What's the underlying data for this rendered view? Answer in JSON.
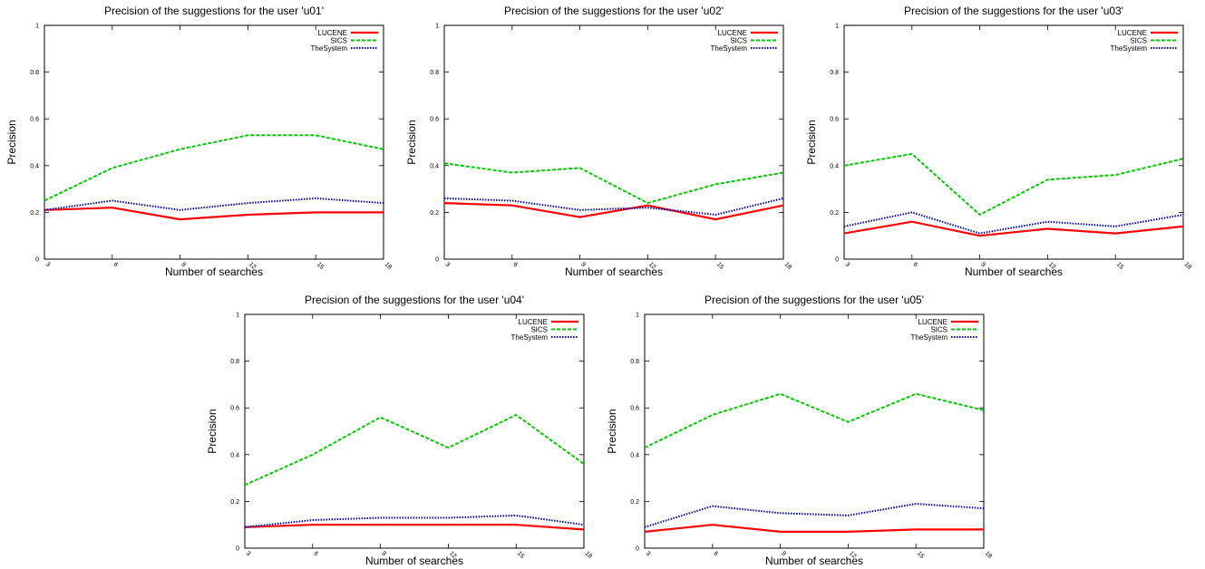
{
  "chart_data": [
    {
      "type": "line",
      "title": "Precision of the suggestions for the user 'u01'",
      "xlabel": "Number of searches",
      "ylabel": "Precision",
      "x": [
        3,
        6,
        9,
        12,
        15,
        18
      ],
      "x_tick_labels": [
        "3",
        "6",
        "9",
        "12",
        "15",
        "18"
      ],
      "y_tick_labels": [
        "0",
        "0.2",
        "0.4",
        "0.6",
        "0.8",
        "1"
      ],
      "xlim": [
        3,
        18
      ],
      "ylim": [
        0,
        1
      ],
      "legend_position": "top-right",
      "grid": false,
      "series": [
        {
          "name": "LUCENE",
          "color": "#ff0000",
          "dash": "solid",
          "values": [
            0.21,
            0.22,
            0.17,
            0.19,
            0.2,
            0.2
          ]
        },
        {
          "name": "SICS",
          "color": "#00cc00",
          "dash": "dashed",
          "values": [
            0.25,
            0.39,
            0.47,
            0.53,
            0.53,
            0.47
          ]
        },
        {
          "name": "TheSystem",
          "color": "#0000cc",
          "dash": "dotted",
          "values": [
            0.21,
            0.25,
            0.21,
            0.24,
            0.26,
            0.24
          ]
        }
      ]
    },
    {
      "type": "line",
      "title": "Precision of the suggestions for the user 'u02'",
      "xlabel": "Number of searches",
      "ylabel": "Precision",
      "x": [
        3,
        6,
        9,
        12,
        15,
        18
      ],
      "x_tick_labels": [
        "3",
        "6",
        "9",
        "12",
        "15",
        "18"
      ],
      "y_tick_labels": [
        "0",
        "0.2",
        "0.4",
        "0.6",
        "0.8",
        "1"
      ],
      "xlim": [
        3,
        18
      ],
      "ylim": [
        0,
        1
      ],
      "legend_position": "top-right",
      "grid": false,
      "series": [
        {
          "name": "LUCENE",
          "color": "#ff0000",
          "dash": "solid",
          "values": [
            0.24,
            0.23,
            0.18,
            0.23,
            0.17,
            0.23
          ]
        },
        {
          "name": "SICS",
          "color": "#00cc00",
          "dash": "dashed",
          "values": [
            0.41,
            0.37,
            0.39,
            0.24,
            0.32,
            0.37
          ]
        },
        {
          "name": "TheSystem",
          "color": "#0000cc",
          "dash": "dotted",
          "values": [
            0.26,
            0.25,
            0.21,
            0.22,
            0.19,
            0.26
          ]
        }
      ]
    },
    {
      "type": "line",
      "title": "Precision of the suggestions for the user 'u03'",
      "xlabel": "Number of searches",
      "ylabel": "Precision",
      "x": [
        3,
        6,
        9,
        12,
        15,
        18
      ],
      "x_tick_labels": [
        "3",
        "6",
        "9",
        "12",
        "15",
        "18"
      ],
      "y_tick_labels": [
        "0",
        "0.2",
        "0.4",
        "0.6",
        "0.8",
        "1"
      ],
      "xlim": [
        3,
        18
      ],
      "ylim": [
        0,
        1
      ],
      "legend_position": "top-right",
      "grid": false,
      "series": [
        {
          "name": "LUCENE",
          "color": "#ff0000",
          "dash": "solid",
          "values": [
            0.11,
            0.16,
            0.1,
            0.13,
            0.11,
            0.14
          ]
        },
        {
          "name": "SICS",
          "color": "#00cc00",
          "dash": "dashed",
          "values": [
            0.4,
            0.45,
            0.19,
            0.34,
            0.36,
            0.43
          ]
        },
        {
          "name": "TheSystem",
          "color": "#0000cc",
          "dash": "dotted",
          "values": [
            0.14,
            0.2,
            0.11,
            0.16,
            0.14,
            0.19
          ]
        }
      ]
    },
    {
      "type": "line",
      "title": "Precision of the suggestions for the user 'u04'",
      "xlabel": "Number of searches",
      "ylabel": "Precision",
      "x": [
        3,
        6,
        9,
        12,
        15,
        18
      ],
      "x_tick_labels": [
        "3",
        "6",
        "9",
        "12",
        "15",
        "18"
      ],
      "y_tick_labels": [
        "0",
        "0.2",
        "0.4",
        "0.6",
        "0.8",
        "1"
      ],
      "xlim": [
        3,
        18
      ],
      "ylim": [
        0,
        1
      ],
      "legend_position": "top-right",
      "grid": false,
      "series": [
        {
          "name": "LUCENE",
          "color": "#ff0000",
          "dash": "solid",
          "values": [
            0.09,
            0.1,
            0.1,
            0.1,
            0.1,
            0.08
          ]
        },
        {
          "name": "SICS",
          "color": "#00cc00",
          "dash": "dashed",
          "values": [
            0.27,
            0.4,
            0.56,
            0.43,
            0.57,
            0.36
          ]
        },
        {
          "name": "TheSystem",
          "color": "#0000cc",
          "dash": "dotted",
          "values": [
            0.09,
            0.12,
            0.13,
            0.13,
            0.14,
            0.1
          ]
        }
      ]
    },
    {
      "type": "line",
      "title": "Precision of the suggestions for the user 'u05'",
      "xlabel": "Number of searches",
      "ylabel": "Precision",
      "x": [
        3,
        6,
        9,
        12,
        15,
        18
      ],
      "x_tick_labels": [
        "3",
        "6",
        "9",
        "12",
        "15",
        "18"
      ],
      "y_tick_labels": [
        "0",
        "0.2",
        "0.4",
        "0.6",
        "0.8",
        "1"
      ],
      "xlim": [
        3,
        18
      ],
      "ylim": [
        0,
        1
      ],
      "legend_position": "top-right",
      "grid": false,
      "series": [
        {
          "name": "LUCENE",
          "color": "#ff0000",
          "dash": "solid",
          "values": [
            0.07,
            0.1,
            0.07,
            0.07,
            0.08,
            0.08
          ]
        },
        {
          "name": "SICS",
          "color": "#00cc00",
          "dash": "dashed",
          "values": [
            0.43,
            0.57,
            0.66,
            0.54,
            0.66,
            0.59
          ]
        },
        {
          "name": "TheSystem",
          "color": "#0000cc",
          "dash": "dotted",
          "values": [
            0.09,
            0.18,
            0.15,
            0.14,
            0.19,
            0.17
          ]
        }
      ]
    }
  ]
}
